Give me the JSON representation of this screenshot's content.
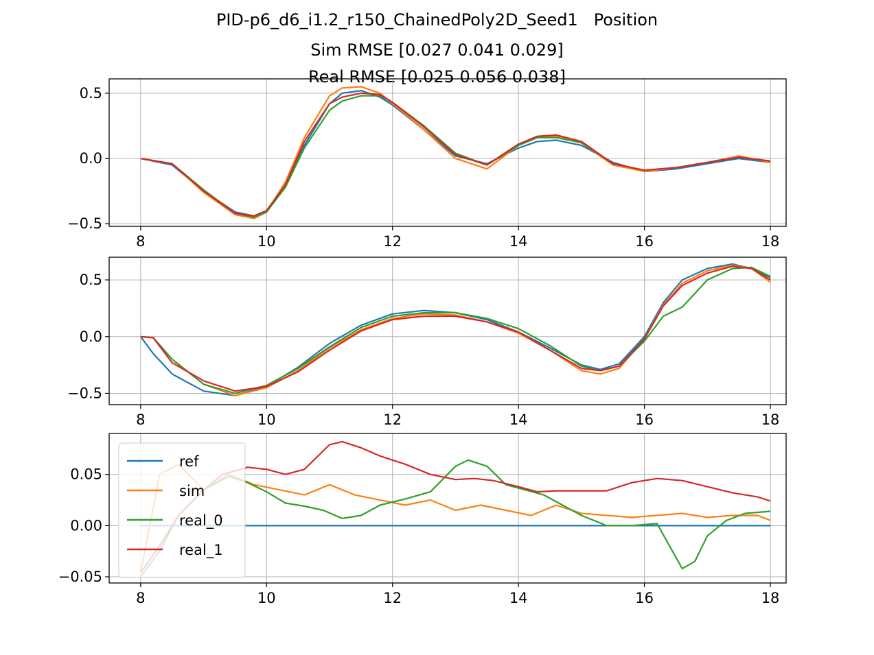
{
  "figure": {
    "title_lines": [
      "PID-p6_d6_i1.2_r150_ChainedPoly2D_Seed1   Position",
      "Sim RMSE [0.027 0.041 0.029]",
      "Real RMSE [0.025 0.056 0.038]"
    ]
  },
  "colors": {
    "ref": "#1f77b4",
    "sim": "#ff7f0e",
    "real_0": "#2ca02c",
    "real_1": "#d62728",
    "grid": "#b0b0b0"
  },
  "chart_data": [
    {
      "type": "line",
      "xlim": [
        7.5,
        18.25
      ],
      "ylim": [
        -0.52,
        0.61
      ],
      "xticks": [
        8,
        10,
        12,
        14,
        16,
        18
      ],
      "yticks": [
        -0.5,
        0.0,
        0.5
      ],
      "ytick_labels": [
        "−0.5",
        "0.0",
        "0.5"
      ],
      "grid": true,
      "series": [
        {
          "name": "ref",
          "x": [
            8,
            8.5,
            9,
            9.5,
            9.8,
            10,
            10.3,
            10.6,
            11,
            11.2,
            11.5,
            11.8,
            12,
            12.5,
            13,
            13.5,
            14,
            14.3,
            14.6,
            15,
            15.5,
            16,
            16.5,
            17,
            17.5,
            18
          ],
          "y": [
            0,
            -0.05,
            -0.25,
            -0.41,
            -0.44,
            -0.4,
            -0.2,
            0.1,
            0.42,
            0.5,
            0.52,
            0.47,
            0.41,
            0.22,
            0.02,
            -0.04,
            0.08,
            0.13,
            0.14,
            0.1,
            -0.03,
            -0.1,
            -0.08,
            -0.04,
            0,
            -0.03
          ]
        },
        {
          "name": "sim",
          "x": [
            8,
            8.5,
            9,
            9.5,
            9.8,
            10,
            10.3,
            10.6,
            11,
            11.2,
            11.5,
            11.8,
            12,
            12.5,
            13,
            13.5,
            14,
            14.3,
            14.6,
            15,
            15.5,
            16,
            16.5,
            17,
            17.5,
            18
          ],
          "y": [
            0,
            -0.04,
            -0.26,
            -0.43,
            -0.46,
            -0.41,
            -0.18,
            0.16,
            0.48,
            0.54,
            0.55,
            0.5,
            0.42,
            0.22,
            0,
            -0.08,
            0.1,
            0.17,
            0.17,
            0.12,
            -0.05,
            -0.1,
            -0.07,
            -0.03,
            0.02,
            -0.03
          ]
        },
        {
          "name": "real_0",
          "x": [
            8,
            8.5,
            9,
            9.5,
            9.8,
            10,
            10.3,
            10.6,
            11,
            11.2,
            11.5,
            11.8,
            12,
            12.5,
            13,
            13.5,
            14,
            14.3,
            14.6,
            15,
            15.5,
            16,
            16.5,
            17,
            17.5,
            18
          ],
          "y": [
            0,
            -0.04,
            -0.24,
            -0.42,
            -0.45,
            -0.41,
            -0.22,
            0.08,
            0.37,
            0.44,
            0.48,
            0.48,
            0.43,
            0.25,
            0.04,
            -0.05,
            0.1,
            0.16,
            0.16,
            0.12,
            -0.04,
            -0.09,
            -0.07,
            -0.03,
            0.01,
            -0.02
          ]
        },
        {
          "name": "real_1",
          "x": [
            8,
            8.5,
            9,
            9.5,
            9.8,
            10,
            10.3,
            10.6,
            11,
            11.2,
            11.5,
            11.8,
            12,
            12.5,
            13,
            13.5,
            14,
            14.3,
            14.6,
            15,
            15.5,
            16,
            16.5,
            17,
            17.5,
            18
          ],
          "y": [
            0,
            -0.04,
            -0.25,
            -0.42,
            -0.44,
            -0.4,
            -0.2,
            0.13,
            0.42,
            0.47,
            0.5,
            0.49,
            0.43,
            0.24,
            0.03,
            -0.05,
            0.11,
            0.17,
            0.18,
            0.13,
            -0.04,
            -0.09,
            -0.07,
            -0.03,
            0.01,
            -0.02
          ]
        }
      ]
    },
    {
      "type": "line",
      "xlim": [
        7.5,
        18.25
      ],
      "ylim": [
        -0.6,
        0.7
      ],
      "xticks": [
        8,
        10,
        12,
        14,
        16,
        18
      ],
      "yticks": [
        -0.5,
        0.0,
        0.5
      ],
      "ytick_labels": [
        "−0.5",
        "0.0",
        "0.5"
      ],
      "grid": true,
      "series": [
        {
          "name": "ref",
          "x": [
            8,
            8.2,
            8.5,
            9,
            9.5,
            10,
            10.5,
            11,
            11.5,
            12,
            12.5,
            13,
            13.5,
            14,
            14.5,
            15,
            15.3,
            15.6,
            16,
            16.3,
            16.6,
            17,
            17.4,
            17.7,
            18
          ],
          "y": [
            0,
            -0.15,
            -0.33,
            -0.48,
            -0.52,
            -0.44,
            -0.27,
            -0.06,
            0.1,
            0.2,
            0.23,
            0.21,
            0.15,
            0.04,
            -0.1,
            -0.25,
            -0.29,
            -0.24,
            0,
            0.3,
            0.5,
            0.6,
            0.64,
            0.6,
            0.52
          ]
        },
        {
          "name": "sim",
          "x": [
            8,
            8.2,
            8.5,
            9,
            9.5,
            10,
            10.5,
            11,
            11.5,
            12,
            12.5,
            13,
            13.5,
            14,
            14.5,
            15,
            15.3,
            15.6,
            16,
            16.3,
            16.6,
            17,
            17.4,
            17.7,
            18
          ],
          "y": [
            0,
            -0.01,
            -0.2,
            -0.42,
            -0.52,
            -0.45,
            -0.3,
            -0.1,
            0.06,
            0.16,
            0.2,
            0.19,
            0.13,
            0.03,
            -0.12,
            -0.3,
            -0.33,
            -0.28,
            -0.02,
            0.28,
            0.47,
            0.58,
            0.63,
            0.6,
            0.48
          ]
        },
        {
          "name": "real_0",
          "x": [
            8,
            8.2,
            8.5,
            9,
            9.5,
            10,
            10.5,
            11,
            11.5,
            12,
            12.5,
            13,
            13.5,
            14,
            14.5,
            15,
            15.3,
            15.6,
            16,
            16.3,
            16.6,
            17,
            17.4,
            17.7,
            18
          ],
          "y": [
            0,
            -0.01,
            -0.2,
            -0.42,
            -0.5,
            -0.43,
            -0.28,
            -0.09,
            0.08,
            0.18,
            0.21,
            0.21,
            0.16,
            0.07,
            -0.08,
            -0.26,
            -0.3,
            -0.26,
            -0.04,
            0.18,
            0.26,
            0.5,
            0.6,
            0.61,
            0.53
          ]
        },
        {
          "name": "real_1",
          "x": [
            8,
            8.2,
            8.5,
            9,
            9.5,
            10,
            10.5,
            11,
            11.5,
            12,
            12.5,
            13,
            13.5,
            14,
            14.5,
            15,
            15.3,
            15.6,
            16,
            16.3,
            16.6,
            17,
            17.4,
            17.7,
            18
          ],
          "y": [
            0,
            -0.01,
            -0.23,
            -0.39,
            -0.48,
            -0.44,
            -0.31,
            -0.12,
            0.05,
            0.15,
            0.18,
            0.18,
            0.13,
            0.04,
            -0.12,
            -0.28,
            -0.3,
            -0.26,
            -0.02,
            0.27,
            0.45,
            0.56,
            0.62,
            0.6,
            0.5
          ]
        }
      ]
    },
    {
      "type": "line",
      "xlim": [
        7.5,
        18.25
      ],
      "ylim": [
        -0.056,
        0.09
      ],
      "xticks": [
        8,
        10,
        12,
        14,
        16,
        18
      ],
      "yticks": [
        -0.05,
        0.0,
        0.05
      ],
      "ytick_labels": [
        "−0.05",
        "0.00",
        "0.05"
      ],
      "grid": true,
      "legend": {
        "position": "upper-left",
        "entries": [
          "ref",
          "sim",
          "real_0",
          "real_1"
        ]
      },
      "series": [
        {
          "name": "ref",
          "x": [
            8,
            18
          ],
          "y": [
            0,
            0
          ]
        },
        {
          "name": "sim",
          "x": [
            8,
            8.3,
            8.6,
            9,
            9.4,
            9.8,
            10.2,
            10.6,
            11,
            11.4,
            11.8,
            12.2,
            12.6,
            13,
            13.4,
            13.8,
            14.2,
            14.6,
            15,
            15.4,
            15.8,
            16.2,
            16.6,
            17,
            17.4,
            17.8,
            18
          ],
          "y": [
            -0.046,
            0.05,
            0.06,
            0.035,
            0.05,
            0.04,
            0.035,
            0.03,
            0.04,
            0.03,
            0.025,
            0.02,
            0.025,
            0.015,
            0.02,
            0.015,
            0.01,
            0.02,
            0.012,
            0.01,
            0.008,
            0.01,
            0.012,
            0.008,
            0.01,
            0.01,
            0.005
          ]
        },
        {
          "name": "real_0",
          "x": [
            8,
            8.3,
            8.6,
            9,
            9.4,
            9.7,
            10,
            10.3,
            10.6,
            10.9,
            11.2,
            11.5,
            11.8,
            12.2,
            12.6,
            13,
            13.2,
            13.5,
            13.8,
            14.1,
            14.4,
            14.7,
            15,
            15.4,
            15.8,
            16.2,
            16.4,
            16.6,
            16.8,
            17,
            17.3,
            17.6,
            18
          ],
          "y": [
            -0.05,
            -0.025,
            0.01,
            0.035,
            0.048,
            0.042,
            0.033,
            0.022,
            0.019,
            0.015,
            0.007,
            0.01,
            0.02,
            0.026,
            0.033,
            0.058,
            0.064,
            0.058,
            0.04,
            0.035,
            0.03,
            0.02,
            0.01,
            0,
            0,
            0.002,
            -0.02,
            -0.042,
            -0.035,
            -0.01,
            0.005,
            0.012,
            0.014
          ]
        },
        {
          "name": "real_1",
          "x": [
            8,
            8.3,
            8.6,
            9,
            9.3,
            9.7,
            10,
            10.3,
            10.6,
            11,
            11.2,
            11.5,
            11.8,
            12.2,
            12.6,
            13,
            13.3,
            13.6,
            14,
            14.3,
            14.6,
            15,
            15.4,
            15.8,
            16.2,
            16.6,
            17,
            17.4,
            17.8,
            18
          ],
          "y": [
            -0.046,
            -0.02,
            0.01,
            0.035,
            0.05,
            0.057,
            0.055,
            0.05,
            0.055,
            0.079,
            0.082,
            0.076,
            0.068,
            0.06,
            0.05,
            0.045,
            0.046,
            0.044,
            0.038,
            0.033,
            0.034,
            0.034,
            0.034,
            0.042,
            0.046,
            0.044,
            0.038,
            0.032,
            0.028,
            0.024
          ]
        }
      ]
    }
  ]
}
